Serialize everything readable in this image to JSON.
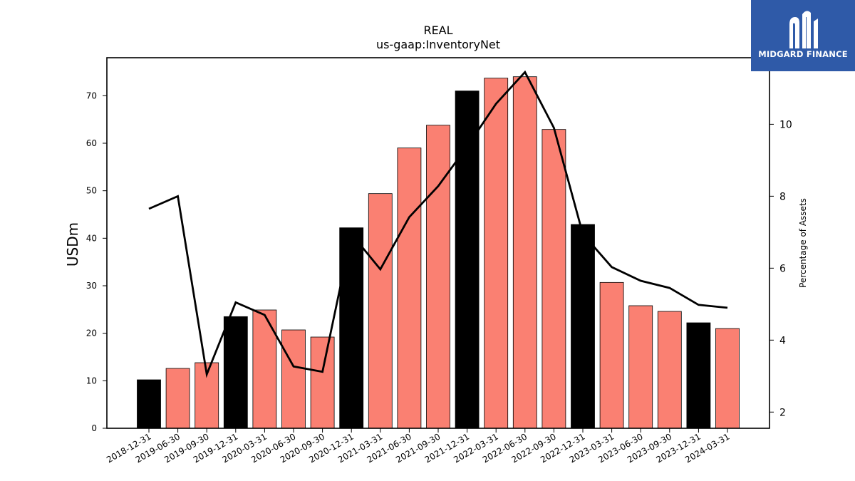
{
  "logo": {
    "text": "MIDGARD FINANCE",
    "icon": "midgard-logo-icon",
    "background": "#2f5aa8"
  },
  "chart_data": {
    "type": "bar",
    "title": "REAL",
    "subtitle": "us-gaap:InventoryNet",
    "ylabel": "USDm",
    "y2label": "Percentage of Assets",
    "ylim": [
      0,
      78
    ],
    "y2lim": [
      1.55,
      11.85
    ],
    "yticks": [
      0,
      10,
      20,
      30,
      40,
      50,
      60,
      70
    ],
    "y2ticks": [
      2,
      4,
      6,
      8,
      10
    ],
    "categories": [
      "2018-12-31",
      "2019-06-30",
      "2019-09-30",
      "2019-12-31",
      "2020-03-31",
      "2020-06-30",
      "2020-09-30",
      "2020-12-31",
      "2021-03-31",
      "2021-06-30",
      "2021-09-30",
      "2021-12-31",
      "2022-03-31",
      "2022-06-30",
      "2022-09-30",
      "2022-12-31",
      "2023-03-31",
      "2023-06-30",
      "2023-09-30",
      "2023-12-31",
      "2024-03-31"
    ],
    "series": [
      {
        "type": "bar",
        "axis": "left",
        "values": [
          10.2,
          12.6,
          13.8,
          23.5,
          24.9,
          20.7,
          19.2,
          42.2,
          49.4,
          59.0,
          63.8,
          71.0,
          73.7,
          74.0,
          62.9,
          42.9,
          30.7,
          25.8,
          24.6,
          22.2,
          21.0
        ],
        "colors": [
          "#000000",
          "#fa8072",
          "#fa8072",
          "#000000",
          "#fa8072",
          "#fa8072",
          "#fa8072",
          "#000000",
          "#fa8072",
          "#fa8072",
          "#fa8072",
          "#000000",
          "#fa8072",
          "#fa8072",
          "#fa8072",
          "#000000",
          "#fa8072",
          "#fa8072",
          "#fa8072",
          "#000000",
          "#fa8072"
        ]
      },
      {
        "type": "line",
        "axis": "right",
        "color": "#000000",
        "values": [
          7.65,
          8.0,
          3.05,
          5.05,
          4.7,
          3.27,
          3.12,
          6.95,
          5.97,
          7.42,
          8.28,
          9.38,
          10.57,
          11.45,
          9.9,
          6.95,
          6.03,
          5.65,
          5.45,
          4.98,
          4.9
        ]
      }
    ],
    "legend": "none",
    "grid": false
  }
}
